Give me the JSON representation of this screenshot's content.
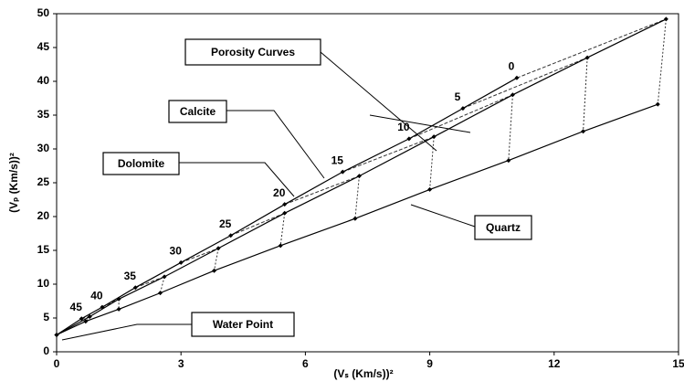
{
  "chart_data": {
    "type": "line",
    "xlabel": "(Vₛ (Km/s))²",
    "ylabel": "(Vₚ (Km/s))²",
    "xlim": [
      0,
      15
    ],
    "xticks": [
      0,
      3,
      6,
      9,
      12,
      15
    ],
    "ylim": [
      0,
      50
    ],
    "yticks": [
      0,
      5,
      10,
      15,
      20,
      25,
      30,
      35,
      40,
      45,
      50
    ],
    "series": [
      {
        "name": "Calcite",
        "color": "#000000",
        "x": [
          11.1,
          9.8,
          8.5,
          6.9,
          5.5,
          4.2,
          3.0,
          1.9,
          1.1,
          0.6,
          0
        ],
        "values": [
          40.5,
          36,
          31.5,
          26.6,
          21.8,
          17.2,
          13.2,
          9.5,
          6.6,
          4.9,
          2.5
        ]
      },
      {
        "name": "Dolomite",
        "color": "#000000",
        "x": [
          14.7,
          12.8,
          11.0,
          9.1,
          7.3,
          5.5,
          3.9,
          2.6,
          1.5,
          0.8,
          0
        ],
        "values": [
          49.2,
          43.5,
          38,
          31.8,
          26,
          20.5,
          15.3,
          11.1,
          7.8,
          5.2,
          2.5
        ]
      },
      {
        "name": "Quartz",
        "color": "#000000",
        "x": [
          14.5,
          12.7,
          10.9,
          9.0,
          7.2,
          5.4,
          3.8,
          2.5,
          1.5,
          0.7,
          0
        ],
        "values": [
          36.6,
          32.6,
          28.3,
          24,
          19.7,
          15.7,
          12,
          8.7,
          6.3,
          4.5,
          2.5
        ]
      }
    ],
    "porosity_labels": [
      0,
      5,
      10,
      15,
      20,
      25,
      30,
      35,
      40,
      45
    ],
    "annotations": [
      "Porosity Curves",
      "Water Point"
    ]
  }
}
